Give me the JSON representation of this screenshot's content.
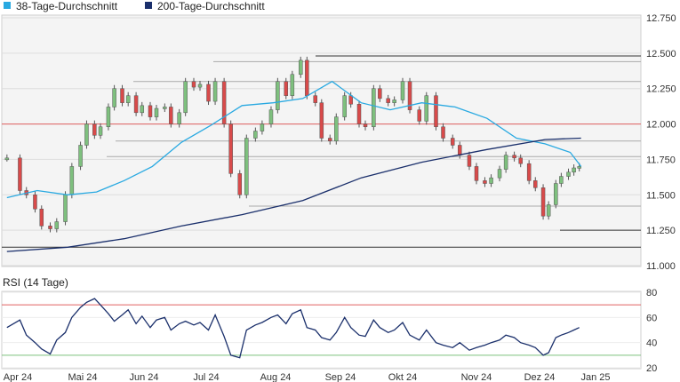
{
  "chart_data": [
    {
      "type": "candlestick",
      "legend": [
        {
          "name": "38-Tage-Durchschnitt",
          "color": "#29a9e1"
        },
        {
          "name": "200-Tage-Durchschnitt",
          "color": "#1a2f6b"
        }
      ],
      "legend_placement": "top-left",
      "x_ticks": [
        "Apr 24",
        "Mai 24",
        "Jun 24",
        "Jul 24",
        "Aug 24",
        "Sep 24",
        "Okt 24",
        "Nov 24",
        "Dez 24",
        "Jan 25"
      ],
      "y_ticks": [
        "12.750",
        "12.500",
        "12.250",
        "12.000",
        "11.750",
        "11.500",
        "11.250",
        "11.000"
      ],
      "ylim": [
        11000,
        12750
      ],
      "grid": true,
      "reference_lines": [
        {
          "value": 12000,
          "color": "#e06060"
        },
        {
          "value": 11130,
          "color": "#333333"
        }
      ],
      "support_resistance_levels": [
        12480,
        12440,
        12300,
        11880,
        11770,
        11420,
        11250
      ],
      "candle_colors": {
        "up": "#7ec07e",
        "down": "#d84a4a"
      },
      "series": [
        {
          "name": "38-Tage-Durchschnitt",
          "x": [
            "2024-03-27",
            "2024-04-10",
            "2024-04-24",
            "2024-05-08",
            "2024-05-22",
            "2024-06-05",
            "2024-06-19",
            "2024-07-03",
            "2024-07-17",
            "2024-07-31",
            "2024-08-14",
            "2024-08-28",
            "2024-09-11",
            "2024-09-25",
            "2024-10-09",
            "2024-10-23",
            "2024-11-06",
            "2024-11-20",
            "2024-12-04",
            "2024-12-18",
            "2024-12-24"
          ],
          "values": [
            11480,
            11530,
            11500,
            11520,
            11600,
            11700,
            11870,
            11990,
            12130,
            12150,
            12180,
            12300,
            12150,
            12100,
            12150,
            12120,
            12040,
            11900,
            11860,
            11800,
            11700
          ]
        },
        {
          "name": "200-Tage-Durchschnitt",
          "x": [
            "2024-03-27",
            "2024-04-24",
            "2024-05-22",
            "2024-06-19",
            "2024-07-17",
            "2024-08-14",
            "2024-09-11",
            "2024-10-09",
            "2024-11-06",
            "2024-12-04",
            "2024-12-24"
          ],
          "values": [
            11100,
            11130,
            11190,
            11280,
            11360,
            11460,
            11620,
            11730,
            11820,
            11890,
            11900
          ]
        },
        {
          "name": "Kurs",
          "x": [
            "2024-03-27",
            "2024-04-02",
            "2024-04-05",
            "2024-04-09",
            "2024-04-12",
            "2024-04-16",
            "2024-04-19",
            "2024-04-23",
            "2024-04-26",
            "2024-04-30",
            "2024-05-03",
            "2024-05-07",
            "2024-05-10",
            "2024-05-14",
            "2024-05-17",
            "2024-05-21",
            "2024-05-24",
            "2024-05-28",
            "2024-05-31",
            "2024-06-04",
            "2024-06-07",
            "2024-06-11",
            "2024-06-14",
            "2024-06-18",
            "2024-06-21",
            "2024-06-25",
            "2024-06-28",
            "2024-07-02",
            "2024-07-05",
            "2024-07-09",
            "2024-07-12",
            "2024-07-16",
            "2024-07-19",
            "2024-07-23",
            "2024-07-26",
            "2024-07-30",
            "2024-08-02",
            "2024-08-06",
            "2024-08-09",
            "2024-08-13",
            "2024-08-16",
            "2024-08-20",
            "2024-08-23",
            "2024-08-27",
            "2024-08-30",
            "2024-09-03",
            "2024-09-06",
            "2024-09-10",
            "2024-09-13",
            "2024-09-17",
            "2024-09-20",
            "2024-09-24",
            "2024-09-27",
            "2024-10-01",
            "2024-10-04",
            "2024-10-08",
            "2024-10-11",
            "2024-10-15",
            "2024-10-18",
            "2024-10-22",
            "2024-10-25",
            "2024-10-29",
            "2024-11-01",
            "2024-11-05",
            "2024-11-08",
            "2024-11-12",
            "2024-11-15",
            "2024-11-19",
            "2024-11-22",
            "2024-11-26",
            "2024-11-29",
            "2024-12-03",
            "2024-12-06",
            "2024-12-10",
            "2024-12-13",
            "2024-12-17",
            "2024-12-20",
            "2024-12-23"
          ],
          "values": [
            11760,
            11530,
            11500,
            11400,
            11280,
            11260,
            11310,
            11500,
            11700,
            11850,
            12000,
            11920,
            11980,
            12120,
            12250,
            12150,
            12200,
            12080,
            12130,
            12050,
            12110,
            12120,
            12000,
            12080,
            12300,
            12260,
            12280,
            12160,
            12300,
            12000,
            11650,
            11500,
            11900,
            11950,
            12000,
            12100,
            12300,
            12200,
            12350,
            12450,
            12200,
            12150,
            11900,
            11880,
            12050,
            12200,
            12140,
            12000,
            11980,
            12250,
            12180,
            12150,
            12170,
            12300,
            12100,
            12020,
            12200,
            11980,
            11900,
            11850,
            11780,
            11700,
            11600,
            11580,
            11620,
            11680,
            11780,
            11760,
            11720,
            11600,
            11550,
            11350,
            11430,
            11580,
            11630,
            11660,
            11690,
            11700
          ]
        }
      ]
    },
    {
      "type": "line",
      "title": "RSI (14 Tage)",
      "y_ticks": [
        "80",
        "60",
        "40",
        "20"
      ],
      "ylim": [
        20,
        80
      ],
      "reference_lines": [
        {
          "value": 70,
          "color": "#e06060"
        },
        {
          "value": 30,
          "color": "#7ec07e"
        }
      ],
      "series": [
        {
          "name": "RSI",
          "x": [
            "2024-03-27",
            "2024-04-02",
            "2024-04-05",
            "2024-04-09",
            "2024-04-12",
            "2024-04-16",
            "2024-04-19",
            "2024-04-23",
            "2024-04-26",
            "2024-04-30",
            "2024-05-03",
            "2024-05-07",
            "2024-05-10",
            "2024-05-14",
            "2024-05-17",
            "2024-05-21",
            "2024-05-24",
            "2024-05-28",
            "2024-05-31",
            "2024-06-04",
            "2024-06-07",
            "2024-06-11",
            "2024-06-14",
            "2024-06-18",
            "2024-06-21",
            "2024-06-25",
            "2024-06-28",
            "2024-07-02",
            "2024-07-05",
            "2024-07-09",
            "2024-07-12",
            "2024-07-16",
            "2024-07-19",
            "2024-07-23",
            "2024-07-26",
            "2024-07-30",
            "2024-08-02",
            "2024-08-06",
            "2024-08-09",
            "2024-08-13",
            "2024-08-16",
            "2024-08-20",
            "2024-08-23",
            "2024-08-27",
            "2024-08-30",
            "2024-09-03",
            "2024-09-06",
            "2024-09-10",
            "2024-09-13",
            "2024-09-17",
            "2024-09-20",
            "2024-09-24",
            "2024-09-27",
            "2024-10-01",
            "2024-10-04",
            "2024-10-08",
            "2024-10-11",
            "2024-10-15",
            "2024-10-18",
            "2024-10-22",
            "2024-10-25",
            "2024-10-29",
            "2024-11-01",
            "2024-11-05",
            "2024-11-08",
            "2024-11-12",
            "2024-11-15",
            "2024-11-19",
            "2024-11-22",
            "2024-11-26",
            "2024-11-29",
            "2024-12-03",
            "2024-12-06",
            "2024-12-10",
            "2024-12-13",
            "2024-12-17",
            "2024-12-20",
            "2024-12-23"
          ],
          "values": [
            52,
            58,
            46,
            40,
            35,
            31,
            42,
            48,
            60,
            68,
            72,
            75,
            70,
            63,
            57,
            62,
            66,
            55,
            61,
            52,
            58,
            60,
            50,
            55,
            57,
            54,
            56,
            50,
            62,
            45,
            30,
            28,
            50,
            54,
            56,
            60,
            62,
            55,
            63,
            66,
            52,
            50,
            44,
            42,
            48,
            60,
            52,
            46,
            45,
            58,
            52,
            48,
            50,
            56,
            46,
            42,
            50,
            40,
            38,
            36,
            40,
            34,
            36,
            38,
            40,
            42,
            46,
            44,
            40,
            38,
            36,
            30,
            32,
            44,
            46,
            48,
            50,
            52
          ]
        }
      ]
    }
  ]
}
